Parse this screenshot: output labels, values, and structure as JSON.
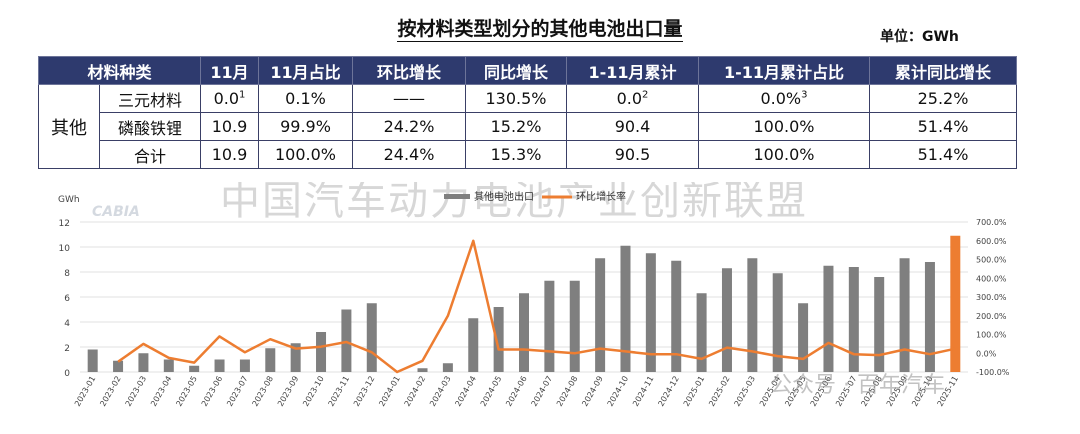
{
  "title": "按材料类型划分的其他电池出口量",
  "unit": "单位：GWh",
  "table": {
    "headers": [
      "材料种类",
      "11月",
      "11月占比",
      "环比增长",
      "同比增长",
      "1-11月累计",
      "1-11月累计占比",
      "累计同比增长"
    ],
    "group_label": "其他",
    "rows": [
      {
        "name": "三元材料",
        "m11": "0.0",
        "m11_sup": "1",
        "share": "0.1%",
        "mom": "——",
        "yoy": "130.5%",
        "ytd": "0.0",
        "ytd_sup": "2",
        "ytd_share": "0.0%",
        "ytd_share_sup": "3",
        "ytd_yoy": "25.2%"
      },
      {
        "name": "磷酸铁锂",
        "m11": "10.9",
        "m11_sup": "",
        "share": "99.9%",
        "mom": "24.2%",
        "yoy": "15.2%",
        "ytd": "90.4",
        "ytd_sup": "",
        "ytd_share": "100.0%",
        "ytd_share_sup": "",
        "ytd_yoy": "51.4%"
      },
      {
        "name": "合计",
        "m11": "10.9",
        "m11_sup": "",
        "share": "100.0%",
        "mom": "24.4%",
        "yoy": "15.3%",
        "ytd": "90.5",
        "ytd_sup": "",
        "ytd_share": "100.0%",
        "ytd_share_sup": "",
        "ytd_yoy": "51.4%"
      }
    ]
  },
  "watermark": "中国汽车动力电池产业创新联盟",
  "watermark_logo": "CABIA",
  "credit": "公众号 · 百年汽车",
  "chart_data": {
    "type": "bar",
    "y_unit_label": "GWh",
    "categories": [
      "2023-01",
      "2023-02",
      "2023-03",
      "2023-04",
      "2023-05",
      "2023-06",
      "2023-07",
      "2023-08",
      "2023-09",
      "2023-10",
      "2023-11",
      "2023-12",
      "2024-01",
      "2024-02",
      "2024-03",
      "2024-04",
      "2024-05",
      "2024-06",
      "2024-07",
      "2024-08",
      "2024-09",
      "2024-10",
      "2024-11",
      "2024-12",
      "2025-01",
      "2025-02",
      "2025-03",
      "2025-04",
      "2025-05",
      "2025-06",
      "2025-07",
      "2025-08",
      "2025-09",
      "2025-10",
      "2025-11"
    ],
    "series": [
      {
        "name": "其他电池出口",
        "type": "bar",
        "axis": "left",
        "color": "#7f7f7f",
        "values": [
          1.8,
          0.9,
          1.5,
          1.0,
          0.5,
          1.0,
          1.0,
          1.9,
          2.3,
          3.2,
          5.0,
          5.5,
          0.0,
          0.3,
          0.7,
          4.3,
          5.2,
          6.3,
          7.3,
          7.3,
          9.1,
          10.1,
          9.5,
          8.9,
          6.3,
          8.3,
          9.1,
          7.9,
          5.5,
          8.5,
          8.4,
          7.6,
          9.1,
          8.8,
          10.9
        ]
      },
      {
        "name": "环比增长率",
        "type": "line",
        "axis": "right",
        "color": "#ed7d31",
        "values": [
          null,
          -45,
          50,
          -25,
          -50,
          90,
          5,
          75,
          25,
          35,
          60,
          5,
          -100,
          -40,
          200,
          600,
          20,
          20,
          10,
          0,
          25,
          10,
          -5,
          -5,
          -30,
          30,
          10,
          -15,
          -30,
          55,
          -5,
          -10,
          20,
          -5,
          24.4
        ]
      }
    ],
    "ylim": [
      0,
      12
    ],
    "yticks": [
      0,
      2,
      4,
      6,
      8,
      10,
      12
    ],
    "y2lim": [
      -100,
      700
    ],
    "y2ticks": [
      "-100.0%",
      "0.0%",
      "100.0%",
      "200.0%",
      "300.0%",
      "400.0%",
      "500.0%",
      "600.0%",
      "700.0%"
    ],
    "legend_position": "top",
    "grid": true
  }
}
